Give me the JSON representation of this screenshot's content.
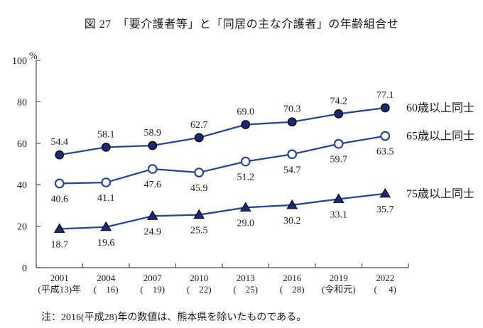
{
  "chart_data": {
    "type": "line",
    "title": "図 27　「要介護者等」と「同居の主な介護者」の年齢組合せ",
    "unit_label": "%",
    "ylim": [
      0,
      100
    ],
    "yticks": [
      0,
      20,
      40,
      60,
      80,
      100
    ],
    "categories": [
      "2001",
      "2004",
      "2007",
      "2010",
      "2013",
      "2016",
      "2019",
      "2022"
    ],
    "category_sublabels": [
      "(平成13)年",
      "(　16)",
      "(　19)",
      "(　22)",
      "(　25)",
      "(　28)",
      "(令和元)",
      "(　 4)"
    ],
    "series": [
      {
        "name": "60歳以上同士",
        "marker": "filled-circle",
        "label_position": "above",
        "values": [
          54.4,
          58.1,
          58.9,
          62.7,
          69.0,
          70.3,
          74.2,
          77.1
        ]
      },
      {
        "name": "65歳以上同士",
        "marker": "open-circle",
        "label_position": "below",
        "values": [
          40.6,
          41.1,
          47.6,
          45.9,
          51.2,
          54.7,
          59.7,
          63.5
        ]
      },
      {
        "name": "75歳以上同士",
        "marker": "filled-triangle",
        "label_position": "below",
        "values": [
          18.7,
          19.6,
          24.9,
          25.5,
          29.0,
          30.2,
          33.1,
          35.7
        ]
      }
    ],
    "legend_position": "right-of-last-point",
    "grid": false,
    "note": "注：2016(平成28)年の数値は、熊本県を除いたものである。",
    "colors": {
      "line": "#2b4691",
      "marker_fill": "#1a2a6e",
      "marker_stroke": "#05091f",
      "open_marker_fill": "#ffffff",
      "axis": "#4d4d4d",
      "text": "#1a1a1a"
    }
  }
}
